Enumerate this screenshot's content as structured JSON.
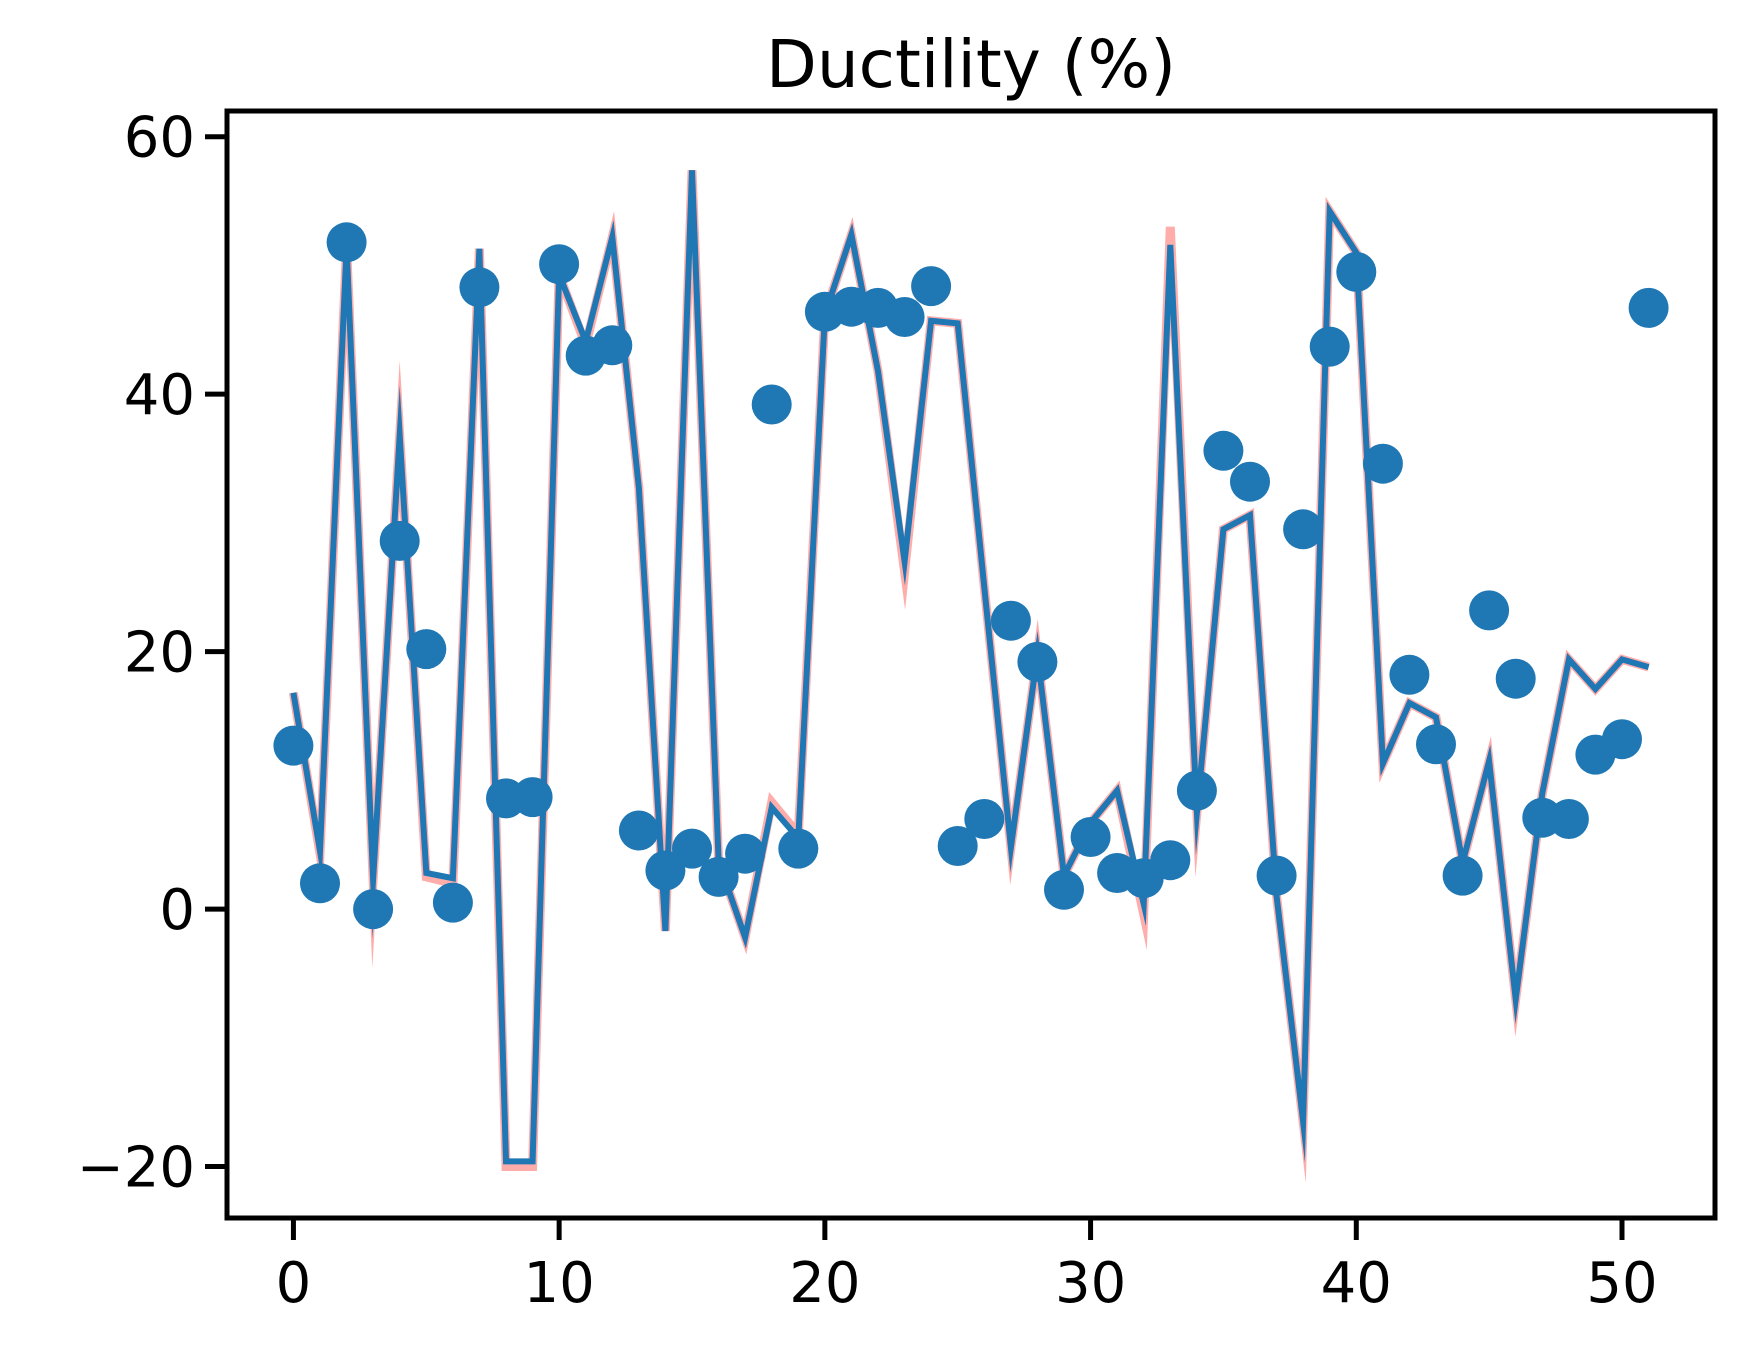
{
  "chart_data": {
    "type": "scatter",
    "title": "Ductility (%)",
    "xlabel": "",
    "ylabel": "",
    "xlim": [
      -2.5,
      53.5
    ],
    "ylim": [
      -24,
      62
    ],
    "xticks": [
      0,
      10,
      20,
      30,
      40,
      50
    ],
    "yticks": [
      -20,
      0,
      20,
      40,
      60
    ],
    "ytick_labels": [
      "−20",
      "0",
      "20",
      "40",
      "60"
    ],
    "grid": false,
    "legend": "none",
    "x": [
      0,
      1,
      2,
      3,
      4,
      5,
      6,
      7,
      8,
      9,
      10,
      11,
      12,
      13,
      14,
      15,
      16,
      17,
      18,
      19,
      20,
      21,
      22,
      23,
      24,
      25,
      26,
      27,
      28,
      29,
      30,
      31,
      32,
      33,
      34,
      35,
      36,
      37,
      38,
      39,
      40,
      41,
      42,
      43,
      44,
      45,
      46,
      47,
      48,
      49,
      50,
      51
    ],
    "series": [
      {
        "kind": "points",
        "color": "#1f77b4",
        "values": [
          12.7,
          2.0,
          51.8,
          0.0,
          28.6,
          20.2,
          0.5,
          48.3,
          8.6,
          8.7,
          50.1,
          43.0,
          43.8,
          6.1,
          3.0,
          4.7,
          2.5,
          4.3,
          39.2,
          4.7,
          46.4,
          46.8,
          46.7,
          46.0,
          48.4,
          4.9,
          7.0,
          22.4,
          19.2,
          1.5,
          5.6,
          2.8,
          2.4,
          3.8,
          9.2,
          35.6,
          33.2,
          2.6,
          29.5,
          43.7,
          49.5,
          34.6,
          18.2,
          12.8,
          2.6,
          23.2,
          17.9,
          7.1,
          7.0,
          12.0,
          13.2,
          46.7
        ]
      },
      {
        "kind": "line",
        "color": "#ff9896",
        "values": [
          16.8,
          4.3,
          51.5,
          2.3,
          36.8,
          2.5,
          2.0,
          51.3,
          -20.0,
          -20.0,
          49.3,
          43.8,
          52.2,
          32.7,
          -1.7,
          57.4,
          3.7,
          -2.2,
          8.3,
          5.8,
          46.2,
          52.4,
          41.8,
          26.2,
          45.7,
          45.5,
          25.0,
          4.8,
          19.8,
          2.6,
          6.7,
          9.2,
          -0.4,
          53.0,
          7.5,
          29.5,
          30.6,
          1.0,
          -16.5,
          54.2,
          51.0,
          11.3,
          16.0,
          14.9,
          3.6,
          11.5,
          -7.0,
          9.0,
          19.4,
          17.1,
          19.4,
          18.8
        ]
      },
      {
        "kind": "line",
        "color": "#1f77b4",
        "values": [
          16.8,
          4.5,
          51.5,
          2.3,
          36.8,
          2.8,
          2.4,
          51.3,
          -19.6,
          -19.6,
          49.3,
          44.1,
          52.2,
          32.7,
          -1.7,
          57.4,
          3.7,
          -2.2,
          7.9,
          5.5,
          46.2,
          52.4,
          41.8,
          27.0,
          45.7,
          45.5,
          25.0,
          4.8,
          19.8,
          2.6,
          6.7,
          9.2,
          0.4,
          51.6,
          7.5,
          29.5,
          30.6,
          1.0,
          -16.5,
          54.2,
          51.0,
          11.3,
          16.0,
          14.9,
          3.6,
          11.5,
          -7.0,
          9.0,
          19.4,
          17.1,
          19.4,
          18.8
        ]
      }
    ]
  }
}
